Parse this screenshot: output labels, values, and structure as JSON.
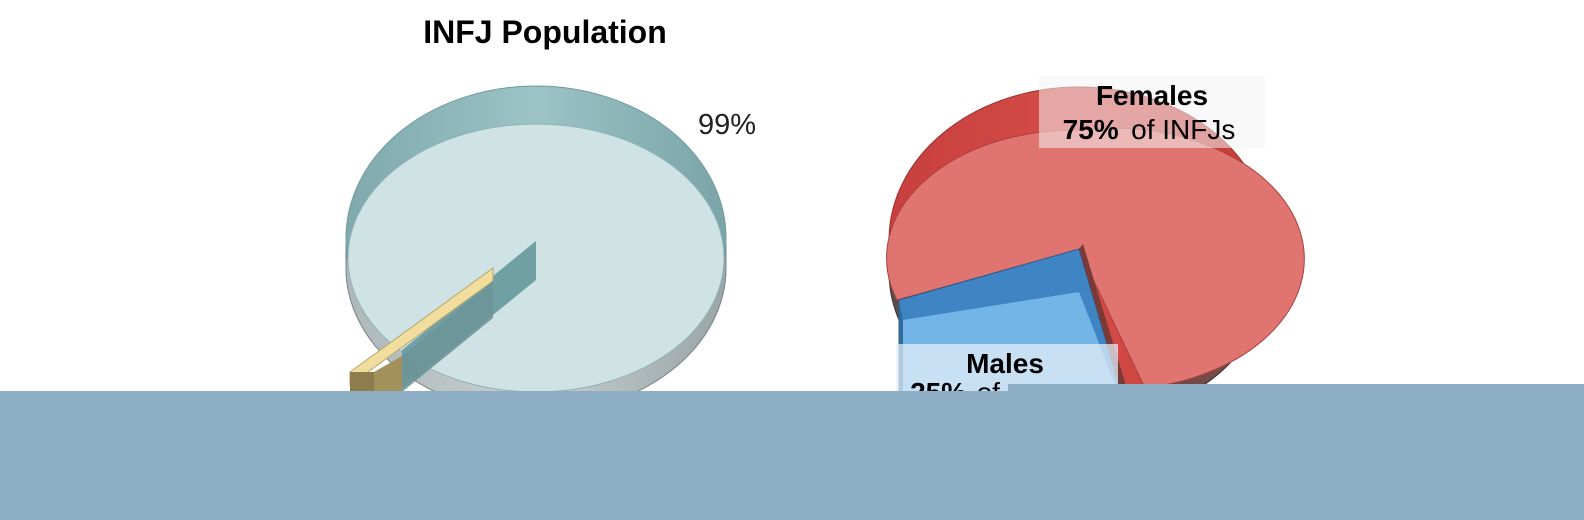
{
  "chart_data": [
    {
      "type": "pie",
      "title": "INFJ Population",
      "slices": [
        {
          "label": "",
          "value": 99,
          "display": "99%",
          "color": "#cfe3e4",
          "side_color": "#8fb9bd"
        },
        {
          "label": "",
          "value": 1,
          "display": "",
          "color": "#f1de9e",
          "side_color": "#8e7c4c"
        }
      ],
      "legend": "none",
      "style": "3d"
    },
    {
      "type": "pie",
      "title": "",
      "slices": [
        {
          "label": "Females",
          "value": 75,
          "display_pct": "75%",
          "display_suffix": "of INFJs",
          "color": "#e07470",
          "side_color": "#c94542"
        },
        {
          "label": "Males",
          "value": 25,
          "display_pct": "25%",
          "display_suffix": "of",
          "color": "#73b5e6",
          "side_color": "#3f85c4"
        }
      ],
      "legend": "none",
      "style": "3d"
    }
  ],
  "colors": {
    "bottom_band": "#8eaec6"
  }
}
